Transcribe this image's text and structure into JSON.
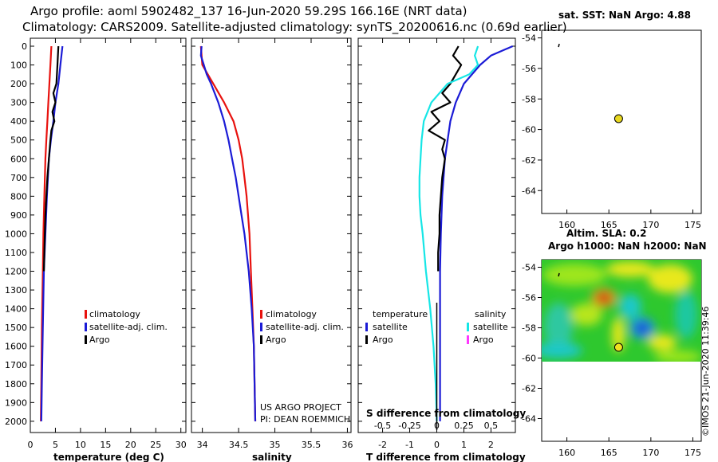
{
  "header": {
    "title_line1": "Argo profile: aoml 5902482_137 16-Jun-2020 59.29S 166.16E (NRT data)",
    "title_line2": "Climatology: CARS2009. Satellite-adjusted climatology: synTS_20200616.nc (0.69d earlier)"
  },
  "colors": {
    "climatology": "#e8120e",
    "satellite": "#1b1bd6",
    "argo": "#000000",
    "sal_satellite": "#16e6e6",
    "sal_argo": "#ff38ff",
    "marker": "#e8d820"
  },
  "watermark": {
    "project": "US ARGO PROJECT",
    "pi": "PI: DEAN ROEMMICH",
    "imos": "©IMOS 21-Jun-2020 11:39:46"
  },
  "chart_data": [
    {
      "id": "temperature",
      "type": "line",
      "xlabel": "temperature (deg C)",
      "ylabel": "",
      "xlim": [
        0,
        31
      ],
      "ylim": [
        2060,
        0
      ],
      "xticks": [
        0,
        5,
        10,
        15,
        20,
        25,
        30
      ],
      "yticks": [
        0,
        100,
        200,
        300,
        400,
        500,
        600,
        700,
        800,
        900,
        1000,
        1100,
        1200,
        1300,
        1400,
        1500,
        1600,
        1700,
        1800,
        1900,
        2000
      ],
      "legend": [
        "climatology",
        "satellite-adj. clim.",
        "Argo"
      ],
      "series": [
        {
          "name": "climatology",
          "color": "#e8120e",
          "depth": [
            0,
            100,
            200,
            300,
            400,
            500,
            600,
            800,
            1000,
            1200,
            1500,
            1800,
            2000
          ],
          "values": [
            4.2,
            4.0,
            3.8,
            3.6,
            3.4,
            3.2,
            3.0,
            2.8,
            2.6,
            2.5,
            2.3,
            2.2,
            2.1
          ]
        },
        {
          "name": "satellite-adj. clim.",
          "color": "#1b1bd6",
          "depth": [
            0,
            50,
            100,
            200,
            300,
            400,
            500,
            600,
            800,
            1000,
            1200,
            1500,
            1800,
            2000
          ],
          "values": [
            6.4,
            6.2,
            6.0,
            5.6,
            5.0,
            4.6,
            4.1,
            3.7,
            3.3,
            3.0,
            2.7,
            2.5,
            2.3,
            2.2
          ]
        },
        {
          "name": "Argo",
          "color": "#000000",
          "depth": [
            0,
            100,
            200,
            250,
            300,
            350,
            400,
            450,
            500,
            600,
            700,
            800,
            900,
            1000,
            1100,
            1200
          ],
          "values": [
            5.6,
            5.4,
            5.2,
            4.6,
            5.0,
            4.4,
            4.8,
            4.2,
            4.0,
            3.7,
            3.4,
            3.2,
            3.0,
            2.9,
            2.8,
            2.7
          ]
        }
      ]
    },
    {
      "id": "salinity",
      "type": "line",
      "xlabel": "salinity",
      "ylabel": "",
      "xlim": [
        33.85,
        36.05
      ],
      "ylim": [
        2060,
        0
      ],
      "xticks": [
        34,
        34.5,
        35,
        35.5,
        36
      ],
      "xticklabels": [
        "34",
        "34.5",
        "35",
        "35.5",
        "36"
      ],
      "legend": [
        "climatology",
        "satellite-adj. clim.",
        "Argo"
      ],
      "series": [
        {
          "name": "climatology",
          "color": "#e8120e",
          "depth": [
            0,
            100,
            200,
            300,
            400,
            500,
            600,
            700,
            800,
            900,
            1000,
            1200,
            1400,
            1600,
            1800,
            2000
          ],
          "values": [
            33.98,
            34.0,
            34.15,
            34.3,
            34.43,
            34.5,
            34.55,
            34.58,
            34.61,
            34.63,
            34.65,
            34.67,
            34.69,
            34.71,
            34.72,
            34.73
          ]
        },
        {
          "name": "satellite-adj. clim.",
          "color": "#1b1bd6",
          "depth": [
            0,
            50,
            100,
            150,
            200,
            300,
            400,
            500,
            600,
            700,
            800,
            900,
            1000,
            1100,
            1200,
            1400,
            1600,
            1800,
            2000
          ],
          "values": [
            33.99,
            33.98,
            34.02,
            34.06,
            34.12,
            34.22,
            34.3,
            34.36,
            34.41,
            34.46,
            34.5,
            34.54,
            34.58,
            34.61,
            34.64,
            34.68,
            34.71,
            34.72,
            34.73
          ]
        }
      ]
    },
    {
      "id": "difference",
      "type": "line",
      "xlabel": "T difference from climatology",
      "top_xlabel": "S difference from climatology",
      "xlim": [
        -2.9,
        2.9
      ],
      "ylim": [
        2060,
        0
      ],
      "xticks": [
        -2,
        -1,
        0,
        1,
        2
      ],
      "top_xticks": [
        -0.5,
        -0.25,
        0,
        0.25,
        0.5
      ],
      "legend_temperature_title": "temperature",
      "legend_salinity_title": "salinity",
      "legend": [
        "satellite",
        "Argo"
      ],
      "series": [
        {
          "name": "T satellite",
          "color": "#1b1bd6",
          "depth": [
            0,
            50,
            100,
            200,
            300,
            400,
            500,
            600,
            700,
            800,
            1000,
            1200,
            1500,
            1800,
            2000
          ],
          "values": [
            2.8,
            2.0,
            1.6,
            1.0,
            0.7,
            0.5,
            0.4,
            0.3,
            0.25,
            0.2,
            0.15,
            0.12,
            0.12,
            0.12,
            0.12
          ]
        },
        {
          "name": "T Argo",
          "color": "#000000",
          "depth": [
            0,
            50,
            100,
            150,
            200,
            250,
            300,
            350,
            400,
            450,
            500,
            550,
            600,
            700,
            800,
            900,
            1000,
            1100,
            1200
          ],
          "values": [
            0.8,
            0.6,
            0.9,
            0.7,
            0.5,
            0.2,
            0.5,
            -0.2,
            0.1,
            -0.3,
            0.3,
            0.2,
            0.3,
            0.2,
            0.15,
            0.1,
            0.1,
            0.05,
            0.05
          ]
        },
        {
          "name": "S satellite",
          "color": "#16e6e6",
          "depth": [
            0,
            50,
            100,
            150,
            200,
            300,
            400,
            500,
            600,
            700,
            800,
            900,
            1000,
            1200,
            1400,
            1600,
            1800,
            2000
          ],
          "values": [
            0.38,
            0.35,
            0.38,
            0.3,
            0.1,
            -0.05,
            -0.12,
            -0.14,
            -0.15,
            -0.16,
            -0.16,
            -0.15,
            -0.13,
            -0.1,
            -0.06,
            -0.03,
            -0.01,
            0.0
          ]
        }
      ]
    },
    {
      "id": "sst_map",
      "type": "scatter",
      "title": "sat. SST: NaN Argo: 4.88",
      "xlim": [
        157,
        176
      ],
      "ylim": [
        -65.5,
        -53.5
      ],
      "xticks": [
        160,
        165,
        170,
        175
      ],
      "yticks": [
        -54,
        -56,
        -58,
        -60,
        -62,
        -64
      ],
      "points": [
        {
          "x": 166.16,
          "y": -59.29
        }
      ]
    },
    {
      "id": "sla_map",
      "type": "heatmap",
      "title": "Altim. SLA: 0.2",
      "subtitle": "Argo h1000: NaN h2000: NaN",
      "xlim": [
        157,
        176
      ],
      "ylim": [
        -65.5,
        -53.5
      ],
      "xticks": [
        160,
        165,
        170,
        175
      ],
      "yticks": [
        -54,
        -56,
        -58,
        -60,
        -62,
        -64
      ],
      "points": [
        {
          "x": 166.16,
          "y": -59.29
        }
      ]
    }
  ]
}
